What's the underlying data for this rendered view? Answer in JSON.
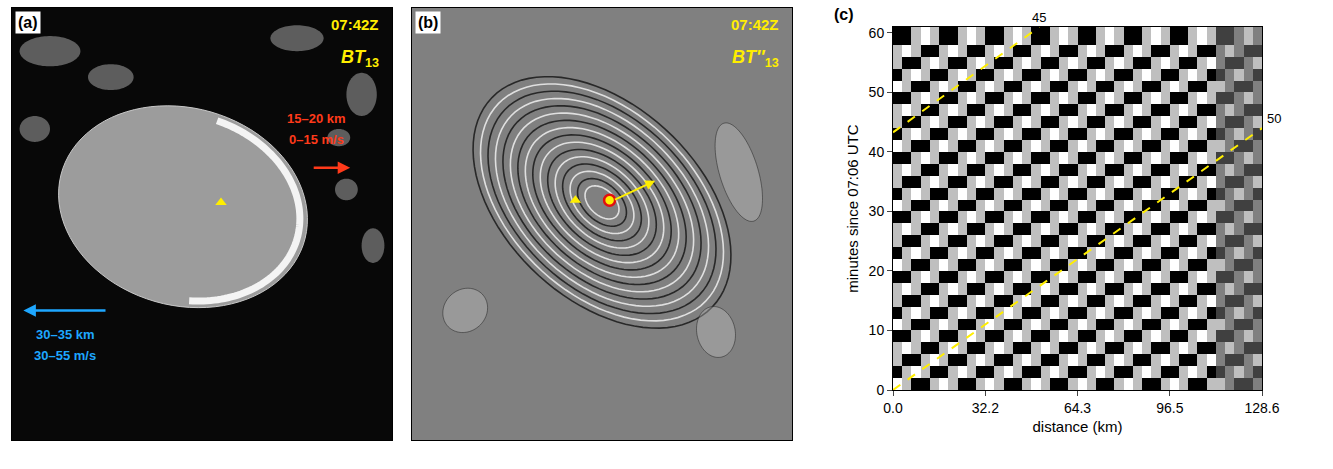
{
  "images": [
    {
      "letter": "(a)",
      "time": "07:42Z",
      "band": "BT",
      "band_sub": "13",
      "annotations": [
        {
          "lines": [
            "15–20 km",
            "0–15 m/s"
          ],
          "color": "#ff3a1a",
          "direction": "right"
        },
        {
          "lines": [
            "30–35 km",
            "30–55 m/s"
          ],
          "color": "#1ea7ff",
          "direction": "left"
        }
      ]
    },
    {
      "letter": "(b)",
      "time": "07:42Z",
      "band": "BT″",
      "band_sub": "13"
    }
  ],
  "chart_data": {
    "type": "heatmap",
    "title": "(c)",
    "x_label": "distance (km)",
    "y_label": "minutes since 07:06 UTC",
    "color": "gray",
    "xlim": [
      0,
      128.6
    ],
    "ylim": [
      0,
      61
    ],
    "xticks": [
      {
        "value": 0,
        "label": "0.0"
      },
      32.2,
      64.3,
      96.5,
      128.6
    ],
    "yticks": [
      0,
      10,
      20,
      30,
      40,
      50,
      60
    ],
    "zlim": [
      -2,
      2
    ],
    "x": [
      0,
      3.215,
      6.43,
      9.645,
      12.86,
      16.075,
      19.29,
      22.505,
      25.72,
      28.935,
      32.15,
      35.365,
      38.58,
      41.795,
      45.01,
      48.225,
      51.44,
      54.655,
      57.87,
      61.085,
      64.3,
      67.515,
      70.73,
      73.945,
      77.16,
      80.375,
      83.59,
      86.805,
      90.02,
      93.235,
      96.45,
      99.665,
      102.88,
      106.095,
      109.31,
      112.525,
      115.74,
      118.955,
      122.17,
      125.385,
      128.6
    ],
    "y": [
      0,
      2,
      4,
      6,
      8,
      10,
      12,
      14,
      16,
      18,
      20,
      22,
      24,
      26,
      28,
      30,
      32,
      34,
      36,
      38,
      40,
      42,
      44,
      46,
      48,
      50,
      52,
      54,
      56,
      58,
      61
    ],
    "z": [
      [
        2,
        1,
        -2,
        -2,
        1,
        2,
        1,
        -2,
        -2,
        1,
        2,
        1,
        -2,
        -2,
        1,
        2,
        1,
        -2,
        -2,
        1,
        2,
        1,
        -2,
        -2,
        1,
        2,
        1,
        -2,
        -2,
        1,
        2,
        1,
        -2,
        -2,
        1,
        1,
        0,
        -1,
        -1,
        0
      ],
      [
        -2,
        1,
        2,
        1,
        -2,
        -2,
        1,
        2,
        1,
        -2,
        -2,
        1,
        2,
        1,
        -2,
        -2,
        1,
        2,
        1,
        -2,
        -2,
        1,
        2,
        1,
        -2,
        -2,
        1,
        2,
        1,
        -2,
        -2,
        1,
        2,
        1,
        -2,
        -1,
        0,
        1,
        0,
        -1
      ],
      [
        1,
        -2,
        -2,
        1,
        2,
        1,
        -2,
        -2,
        1,
        2,
        1,
        -2,
        -2,
        1,
        2,
        1,
        -2,
        -2,
        1,
        2,
        1,
        -2,
        -2,
        1,
        2,
        1,
        -2,
        -2,
        1,
        2,
        1,
        -2,
        -2,
        1,
        2,
        0,
        -1,
        -1,
        0,
        1
      ],
      [
        1,
        2,
        1,
        -2,
        -2,
        1,
        2,
        1,
        -2,
        -2,
        1,
        2,
        1,
        -2,
        -2,
        1,
        2,
        1,
        -2,
        -2,
        1,
        2,
        1,
        -2,
        -2,
        1,
        2,
        1,
        -2,
        -2,
        1,
        2,
        1,
        -2,
        -2,
        0,
        1,
        0,
        -1,
        -1
      ],
      [
        -2,
        -2,
        1,
        2,
        1,
        -2,
        -2,
        1,
        2,
        1,
        -2,
        -2,
        1,
        2,
        1,
        -2,
        -2,
        1,
        2,
        1,
        -2,
        -2,
        1,
        2,
        1,
        -2,
        -2,
        1,
        2,
        1,
        -2,
        -2,
        1,
        2,
        1,
        -1,
        -1,
        0,
        1,
        0
      ],
      [
        2,
        1,
        -2,
        -2,
        1,
        2,
        1,
        -2,
        -2,
        1,
        2,
        1,
        -2,
        -2,
        1,
        2,
        1,
        -2,
        -2,
        1,
        2,
        1,
        -2,
        -2,
        1,
        2,
        1,
        -2,
        -2,
        1,
        2,
        1,
        -2,
        -2,
        1,
        1,
        0,
        -1,
        -1,
        0
      ],
      [
        -2,
        1,
        2,
        1,
        -2,
        -2,
        1,
        2,
        1,
        -2,
        -2,
        1,
        2,
        1,
        -2,
        -2,
        1,
        2,
        1,
        -2,
        -2,
        1,
        2,
        1,
        -2,
        -2,
        1,
        2,
        1,
        -2,
        -2,
        1,
        2,
        1,
        -2,
        -1,
        0,
        1,
        0,
        -1
      ],
      [
        1,
        -2,
        -2,
        1,
        2,
        1,
        -2,
        -2,
        1,
        2,
        1,
        -2,
        -2,
        1,
        2,
        1,
        -2,
        -2,
        1,
        2,
        1,
        -2,
        -2,
        1,
        2,
        1,
        -2,
        -2,
        1,
        2,
        1,
        -2,
        -2,
        1,
        2,
        0,
        -1,
        -1,
        0,
        1
      ],
      [
        1,
        2,
        1,
        -2,
        -2,
        1,
        2,
        1,
        -2,
        -2,
        1,
        2,
        1,
        -2,
        -2,
        1,
        2,
        1,
        -2,
        -2,
        1,
        2,
        1,
        -2,
        -2,
        1,
        2,
        1,
        -2,
        -2,
        1,
        2,
        1,
        -2,
        -2,
        0,
        1,
        0,
        -1,
        -1
      ],
      [
        -2,
        -2,
        1,
        2,
        1,
        -2,
        -2,
        1,
        2,
        1,
        -2,
        -2,
        1,
        2,
        1,
        -2,
        -2,
        1,
        2,
        1,
        -2,
        -2,
        1,
        2,
        1,
        -2,
        -2,
        1,
        2,
        1,
        -2,
        -2,
        1,
        2,
        1,
        -1,
        -1,
        0,
        1,
        0
      ],
      [
        2,
        1,
        -2,
        -2,
        1,
        2,
        1,
        -2,
        -2,
        1,
        2,
        1,
        -2,
        -2,
        1,
        2,
        1,
        -2,
        -2,
        1,
        2,
        1,
        -2,
        -2,
        1,
        2,
        1,
        -2,
        -2,
        1,
        2,
        1,
        -2,
        -2,
        1,
        1,
        0,
        -1,
        -1,
        0
      ],
      [
        -2,
        1,
        2,
        1,
        -2,
        -2,
        1,
        2,
        1,
        -2,
        -2,
        1,
        2,
        1,
        -2,
        -2,
        1,
        2,
        1,
        -2,
        -2,
        1,
        2,
        1,
        -2,
        -2,
        1,
        2,
        1,
        -2,
        -2,
        1,
        2,
        1,
        -2,
        -1,
        0,
        1,
        0,
        -1
      ],
      [
        1,
        -2,
        -2,
        1,
        2,
        1,
        -2,
        -2,
        1,
        2,
        1,
        -2,
        -2,
        1,
        2,
        1,
        -2,
        -2,
        1,
        2,
        1,
        -2,
        -2,
        1,
        2,
        1,
        -2,
        -2,
        1,
        2,
        1,
        -2,
        -2,
        1,
        2,
        0,
        -1,
        -1,
        0,
        1
      ],
      [
        1,
        2,
        1,
        -2,
        -2,
        1,
        2,
        1,
        -2,
        -2,
        1,
        2,
        1,
        -2,
        -2,
        1,
        2,
        1,
        -2,
        -2,
        1,
        2,
        1,
        -2,
        -2,
        1,
        2,
        1,
        -2,
        -2,
        1,
        2,
        1,
        -2,
        -2,
        0,
        1,
        0,
        -1,
        -1
      ],
      [
        -2,
        -2,
        1,
        2,
        1,
        -2,
        -2,
        1,
        2,
        1,
        -2,
        -2,
        1,
        2,
        1,
        -2,
        -2,
        1,
        2,
        1,
        -2,
        -2,
        1,
        2,
        1,
        -2,
        -2,
        1,
        2,
        1,
        -2,
        -2,
        1,
        2,
        1,
        -1,
        -1,
        0,
        1,
        0
      ],
      [
        2,
        1,
        -2,
        -2,
        1,
        2,
        1,
        -2,
        -2,
        1,
        2,
        1,
        -2,
        -2,
        1,
        2,
        1,
        -2,
        -2,
        1,
        2,
        1,
        -2,
        -2,
        1,
        2,
        1,
        -2,
        -2,
        1,
        2,
        1,
        -2,
        -2,
        1,
        1,
        0,
        -1,
        -1,
        0
      ],
      [
        -2,
        1,
        2,
        1,
        -2,
        -2,
        1,
        2,
        1,
        -2,
        -2,
        1,
        2,
        1,
        -2,
        -2,
        1,
        2,
        1,
        -2,
        -2,
        1,
        2,
        1,
        -2,
        -2,
        1,
        2,
        1,
        -2,
        -2,
        1,
        2,
        1,
        -2,
        -1,
        0,
        1,
        0,
        -1
      ],
      [
        1,
        -2,
        -2,
        1,
        2,
        1,
        -2,
        -2,
        1,
        2,
        1,
        -2,
        -2,
        1,
        2,
        1,
        -2,
        -2,
        1,
        2,
        1,
        -2,
        -2,
        1,
        2,
        1,
        -2,
        -2,
        1,
        2,
        1,
        -2,
        -2,
        1,
        2,
        0,
        -1,
        -1,
        0,
        1
      ],
      [
        1,
        2,
        1,
        -2,
        -2,
        1,
        2,
        1,
        -2,
        -2,
        1,
        2,
        1,
        -2,
        -2,
        1,
        2,
        1,
        -2,
        -2,
        1,
        2,
        1,
        -2,
        -2,
        1,
        2,
        1,
        -2,
        -2,
        1,
        2,
        1,
        -2,
        -2,
        0,
        1,
        0,
        -1,
        -1
      ],
      [
        -2,
        -2,
        1,
        2,
        1,
        -2,
        -2,
        1,
        2,
        1,
        -2,
        -2,
        1,
        2,
        1,
        -2,
        -2,
        1,
        2,
        1,
        -2,
        -2,
        1,
        2,
        1,
        -2,
        -2,
        1,
        2,
        1,
        -2,
        -2,
        1,
        2,
        1,
        -1,
        -1,
        0,
        1,
        0
      ],
      [
        2,
        1,
        -2,
        -2,
        1,
        2,
        1,
        -2,
        -2,
        1,
        2,
        1,
        -2,
        -2,
        1,
        2,
        1,
        -2,
        -2,
        1,
        2,
        1,
        -2,
        -2,
        1,
        2,
        1,
        -2,
        -2,
        1,
        2,
        1,
        -2,
        -2,
        1,
        1,
        0,
        -1,
        -1,
        0
      ],
      [
        -2,
        1,
        2,
        1,
        -2,
        -2,
        1,
        2,
        1,
        -2,
        -2,
        1,
        2,
        1,
        -2,
        -2,
        1,
        2,
        1,
        -2,
        -2,
        1,
        2,
        1,
        -2,
        -2,
        1,
        2,
        1,
        -2,
        -2,
        1,
        2,
        1,
        -2,
        -1,
        0,
        1,
        0,
        -1
      ],
      [
        1,
        -2,
        -2,
        1,
        2,
        1,
        -2,
        -2,
        1,
        2,
        1,
        -2,
        -2,
        1,
        2,
        1,
        -2,
        -2,
        1,
        2,
        1,
        -2,
        -2,
        1,
        2,
        1,
        -2,
        -2,
        1,
        2,
        1,
        -2,
        -2,
        1,
        2,
        0,
        -1,
        -1,
        0,
        1
      ],
      [
        1,
        2,
        1,
        -2,
        -2,
        1,
        2,
        1,
        -2,
        -2,
        1,
        2,
        1,
        -2,
        -2,
        1,
        2,
        1,
        -2,
        -2,
        1,
        2,
        1,
        -2,
        -2,
        1,
        2,
        1,
        -2,
        -2,
        1,
        2,
        1,
        -2,
        -2,
        0,
        1,
        0,
        -1,
        -1
      ],
      [
        -2,
        -2,
        1,
        2,
        1,
        -2,
        -2,
        1,
        2,
        1,
        -2,
        -2,
        1,
        2,
        1,
        -2,
        -2,
        1,
        2,
        1,
        -2,
        -2,
        1,
        2,
        1,
        -2,
        -2,
        1,
        2,
        1,
        -2,
        -2,
        1,
        2,
        1,
        -1,
        -1,
        0,
        1,
        0
      ],
      [
        2,
        1,
        -2,
        -2,
        1,
        2,
        1,
        -2,
        -2,
        1,
        2,
        1,
        -2,
        -2,
        1,
        2,
        1,
        -2,
        -2,
        1,
        2,
        1,
        -2,
        -2,
        1,
        2,
        1,
        -2,
        -2,
        1,
        2,
        1,
        -2,
        -2,
        1,
        1,
        0,
        -1,
        -1,
        0
      ],
      [
        -2,
        1,
        2,
        1,
        -2,
        -2,
        1,
        2,
        1,
        -2,
        -2,
        1,
        2,
        1,
        -2,
        -2,
        1,
        2,
        1,
        -2,
        -2,
        1,
        2,
        1,
        -2,
        -2,
        1,
        2,
        1,
        -2,
        -2,
        1,
        2,
        1,
        -2,
        -1,
        0,
        1,
        0,
        -1
      ],
      [
        1,
        -2,
        -2,
        1,
        2,
        1,
        -2,
        -2,
        1,
        2,
        1,
        -2,
        -2,
        1,
        2,
        1,
        -2,
        -2,
        1,
        2,
        1,
        -2,
        -2,
        1,
        2,
        1,
        -2,
        -2,
        1,
        2,
        1,
        -2,
        -2,
        1,
        2,
        0,
        -1,
        -1,
        0,
        1
      ],
      [
        1,
        2,
        1,
        -2,
        -2,
        1,
        2,
        1,
        -2,
        -2,
        1,
        2,
        1,
        -2,
        -2,
        1,
        2,
        1,
        -2,
        -2,
        1,
        2,
        1,
        -2,
        -2,
        1,
        2,
        1,
        -2,
        -2,
        1,
        2,
        1,
        -2,
        -2,
        0,
        1,
        0,
        -1,
        -1
      ],
      [
        -2,
        -2,
        1,
        2,
        1,
        -2,
        -2,
        1,
        2,
        1,
        -2,
        -2,
        1,
        2,
        1,
        -2,
        -2,
        1,
        2,
        1,
        -2,
        -2,
        1,
        2,
        1,
        -2,
        -2,
        1,
        2,
        1,
        -2,
        -2,
        1,
        2,
        1,
        -1,
        -1,
        0,
        1,
        0
      ]
    ],
    "series": [
      {
        "name": "45",
        "x": [
          0,
          51
        ],
        "values": [
          43.3,
          61
        ],
        "color": "#ffee00",
        "line_style": "dashed"
      },
      {
        "name": "50",
        "x": [
          0,
          128.6
        ],
        "values": [
          0,
          44
        ],
        "color": "#ffee00",
        "line_style": "dashed"
      }
    ]
  }
}
